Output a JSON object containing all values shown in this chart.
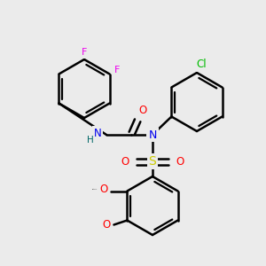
{
  "bg_color": "#ebebeb",
  "bond_color": "#000000",
  "bond_width": 1.8,
  "atom_colors": {
    "F": "#ee00ee",
    "Cl": "#00bb00",
    "N": "#0000ee",
    "O": "#ff0000",
    "S": "#cccc00",
    "H": "#006666",
    "C": "#000000"
  },
  "figsize": [
    3.0,
    3.0
  ],
  "dpi": 100
}
